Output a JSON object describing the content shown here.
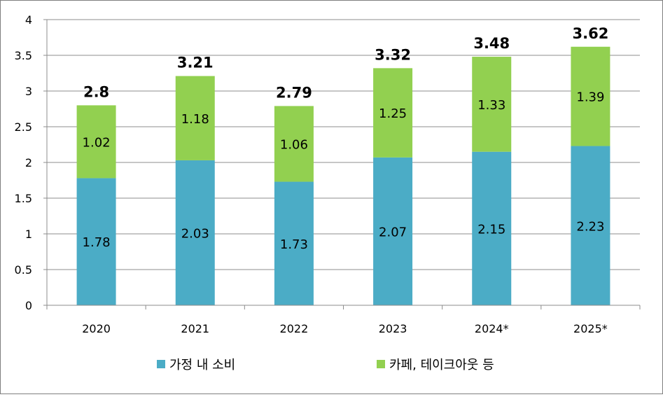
{
  "chart_data": {
    "type": "bar",
    "stacked": true,
    "categories": [
      "2020",
      "2021",
      "2022",
      "2023",
      "2024*",
      "2025*"
    ],
    "series": [
      {
        "name": "가정 내 소비",
        "values": [
          1.78,
          2.03,
          1.73,
          2.07,
          2.15,
          2.23
        ],
        "color": "#4BACC6"
      },
      {
        "name": "카페, 테이크아웃 등",
        "values": [
          1.02,
          1.18,
          1.06,
          1.25,
          1.33,
          1.39
        ],
        "color": "#92D050"
      }
    ],
    "totals": [
      "2.8",
      "3.21",
      "2.79",
      "3.32",
      "3.48",
      "3.62"
    ],
    "y_ticks": [
      "0",
      "0.5",
      "1",
      "1.5",
      "2",
      "2.5",
      "3",
      "3.5",
      "4"
    ],
    "ylim": [
      0,
      4
    ],
    "grid": true,
    "legend_position": "bottom",
    "title": "",
    "xlabel": "",
    "ylabel": ""
  }
}
